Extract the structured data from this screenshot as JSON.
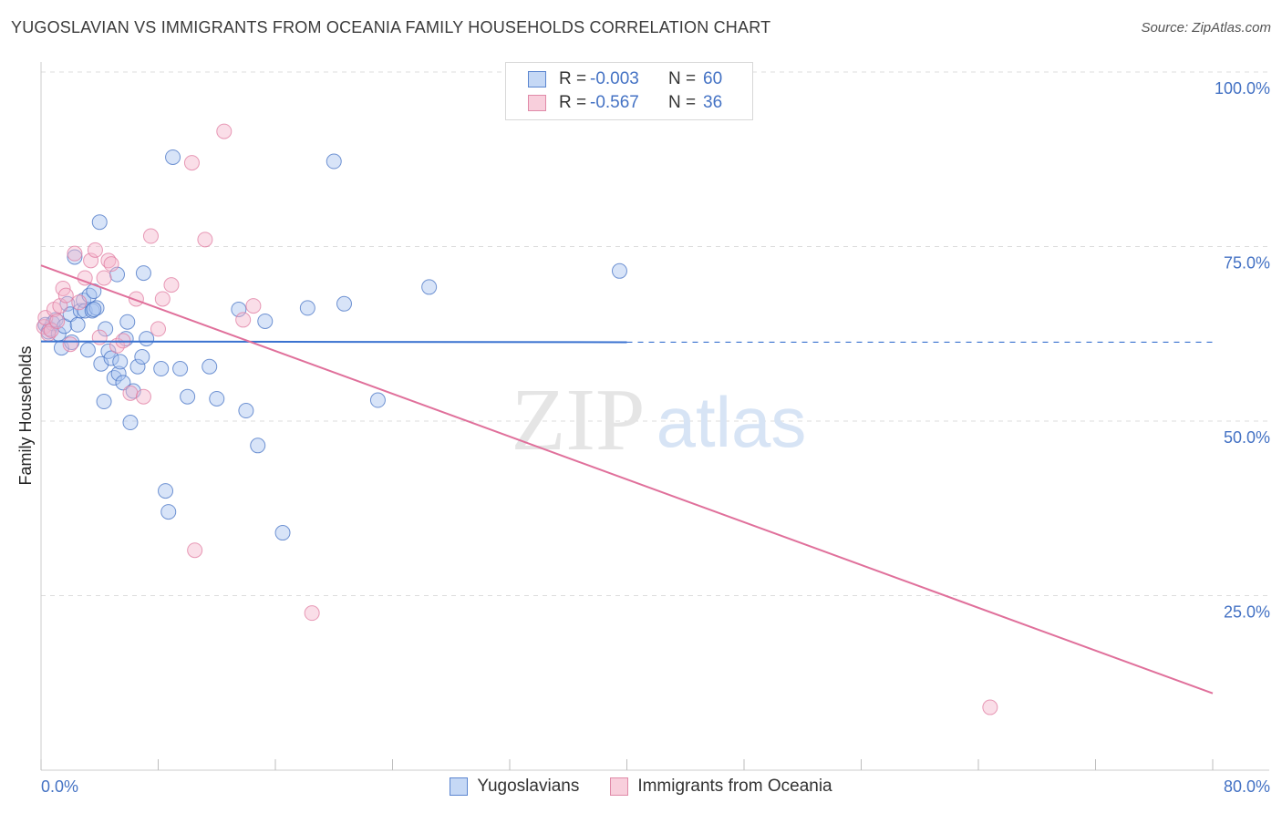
{
  "title": "YUGOSLAVIAN VS IMMIGRANTS FROM OCEANIA FAMILY HOUSEHOLDS CORRELATION CHART",
  "source": "Source: ZipAtlas.com",
  "watermark": {
    "zip": "ZIP",
    "atlas": "atlas"
  },
  "colors": {
    "blue": "#4472c4",
    "blue_fill": "#a9c4ef",
    "blue_line": "#3a72d0",
    "pink": "#e07ba0",
    "pink_fill": "#f4b6cb",
    "pink_line": "#e0709b",
    "grid": "#dcdcdc",
    "tick_text": "#4472c4"
  },
  "legend": {
    "rows": [
      {
        "r_label": "R =",
        "r_value": "-0.003",
        "n_label": "N =",
        "n_value": "60"
      },
      {
        "r_label": "R =",
        "r_value": "-0.567",
        "n_label": "N =",
        "n_value": "36"
      }
    ]
  },
  "bottom_legend": [
    "Yugoslavians",
    "Immigrants from Oceania"
  ],
  "chart_data": {
    "type": "scatter",
    "xlabel": "",
    "ylabel": "Family Households",
    "xlim": [
      0,
      80
    ],
    "ylim": [
      0,
      100
    ],
    "x_tick_labels": [
      "0.0%",
      "80.0%"
    ],
    "y_tick_labels": [
      {
        "value": 100,
        "label": "100.0%"
      },
      {
        "value": 75,
        "label": "75.0%"
      },
      {
        "value": 50,
        "label": "50.0%"
      },
      {
        "value": 25,
        "label": "25.0%"
      }
    ],
    "series": [
      {
        "name": "Yugoslavians",
        "points": [
          [
            0.3,
            63.8
          ],
          [
            0.5,
            62.8
          ],
          [
            0.6,
            63.2
          ],
          [
            0.8,
            64.0
          ],
          [
            1.0,
            64.5
          ],
          [
            1.2,
            62.5
          ],
          [
            1.4,
            60.5
          ],
          [
            1.6,
            63.6
          ],
          [
            1.8,
            66.8
          ],
          [
            2.0,
            65.3
          ],
          [
            2.1,
            61.3
          ],
          [
            2.3,
            73.5
          ],
          [
            2.5,
            63.8
          ],
          [
            2.7,
            65.8
          ],
          [
            2.9,
            67.3
          ],
          [
            3.0,
            65.8
          ],
          [
            3.2,
            60.2
          ],
          [
            3.3,
            68.0
          ],
          [
            3.5,
            65.8
          ],
          [
            3.6,
            68.6
          ],
          [
            3.8,
            66.2
          ],
          [
            4.0,
            78.5
          ],
          [
            4.1,
            58.2
          ],
          [
            4.3,
            52.8
          ],
          [
            4.4,
            63.2
          ],
          [
            4.6,
            60.0
          ],
          [
            4.8,
            59.0
          ],
          [
            5.0,
            56.2
          ],
          [
            5.2,
            71.0
          ],
          [
            5.3,
            56.8
          ],
          [
            5.4,
            58.5
          ],
          [
            5.6,
            55.5
          ],
          [
            5.8,
            61.8
          ],
          [
            5.9,
            64.2
          ],
          [
            6.1,
            49.8
          ],
          [
            6.3,
            54.3
          ],
          [
            6.6,
            57.8
          ],
          [
            6.9,
            59.2
          ],
          [
            7.0,
            71.2
          ],
          [
            7.2,
            61.8
          ],
          [
            8.5,
            40.0
          ],
          [
            8.7,
            37.0
          ],
          [
            9.0,
            87.8
          ],
          [
            9.5,
            57.5
          ],
          [
            10.0,
            53.5
          ],
          [
            11.5,
            57.8
          ],
          [
            12.0,
            53.2
          ],
          [
            13.5,
            66.0
          ],
          [
            14.0,
            51.5
          ],
          [
            14.8,
            46.5
          ],
          [
            15.3,
            64.3
          ],
          [
            16.5,
            34.0
          ],
          [
            18.2,
            66.2
          ],
          [
            20.0,
            87.2
          ],
          [
            20.7,
            66.8
          ],
          [
            23.0,
            53.0
          ],
          [
            26.5,
            69.2
          ],
          [
            39.5,
            71.5
          ],
          [
            8.2,
            57.5
          ],
          [
            3.6,
            66.0
          ]
        ]
      },
      {
        "name": "Immigrants from Oceania",
        "points": [
          [
            0.2,
            63.5
          ],
          [
            0.3,
            64.8
          ],
          [
            0.5,
            62.5
          ],
          [
            0.7,
            63.0
          ],
          [
            0.9,
            66.0
          ],
          [
            1.1,
            64.3
          ],
          [
            1.3,
            66.5
          ],
          [
            1.5,
            69.0
          ],
          [
            1.7,
            68.0
          ],
          [
            2.0,
            61.0
          ],
          [
            2.3,
            74.0
          ],
          [
            2.6,
            67.0
          ],
          [
            3.0,
            70.5
          ],
          [
            3.4,
            73.0
          ],
          [
            3.7,
            74.5
          ],
          [
            4.0,
            62.0
          ],
          [
            4.3,
            70.5
          ],
          [
            4.6,
            73.0
          ],
          [
            4.8,
            72.5
          ],
          [
            5.2,
            60.8
          ],
          [
            5.6,
            61.5
          ],
          [
            6.1,
            54.0
          ],
          [
            6.5,
            67.5
          ],
          [
            7.0,
            53.5
          ],
          [
            7.5,
            76.5
          ],
          [
            8.0,
            63.2
          ],
          [
            8.3,
            67.5
          ],
          [
            8.9,
            69.5
          ],
          [
            10.3,
            87.0
          ],
          [
            10.5,
            31.5
          ],
          [
            11.2,
            76.0
          ],
          [
            12.5,
            91.5
          ],
          [
            13.8,
            64.5
          ],
          [
            14.5,
            66.5
          ],
          [
            18.5,
            22.5
          ],
          [
            64.8,
            9.0
          ]
        ]
      }
    ],
    "trend_lines": [
      {
        "series": "Yugoslavians",
        "x0": 0,
        "y0": 61.4,
        "x1": 40,
        "y1": 61.3,
        "dashed_to_x": 80
      },
      {
        "series": "Immigrants from Oceania",
        "x0": 0,
        "y0": 72.3,
        "x1": 80,
        "y1": 11.0
      }
    ]
  }
}
